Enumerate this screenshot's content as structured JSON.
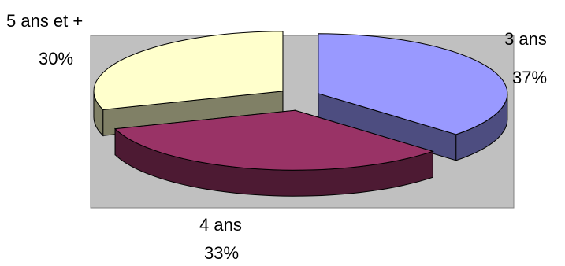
{
  "chart_data": {
    "type": "pie",
    "style": "3d-exploded",
    "title": "",
    "categories": [
      "3 ans",
      "4 ans",
      "5 ans et +"
    ],
    "values": [
      37,
      33,
      30
    ],
    "value_labels": [
      "37%",
      "33%",
      "30%"
    ],
    "unit": "%",
    "colors": {
      "3 ans": {
        "top": "#9999ff",
        "side": "#4d4d80"
      },
      "4 ans": {
        "top": "#993366",
        "side": "#4d1a33"
      },
      "5 ans et +": {
        "top": "#ffffcc",
        "side": "#808066"
      }
    },
    "plot_area_color": "#c0c0c0",
    "legend": "none",
    "data_labels": "category-and-percent"
  }
}
